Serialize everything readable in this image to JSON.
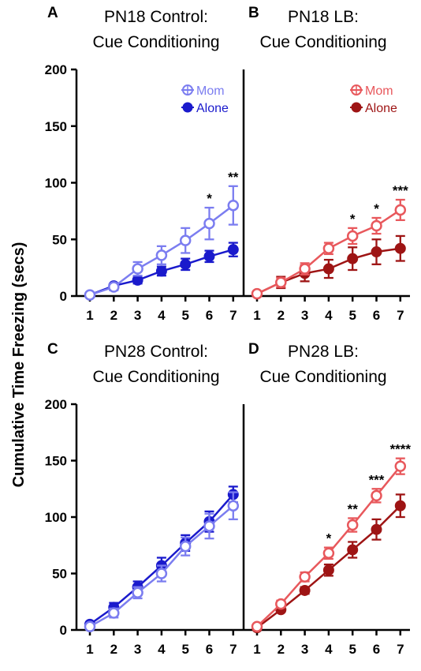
{
  "figure": {
    "ylabel": "Cumulative Time Freezing (secs)"
  },
  "colors": {
    "control_mom": "#7b7df0",
    "control_alone": "#1a1acc",
    "lb_mom": "#e8585c",
    "lb_alone": "#9e1414"
  },
  "chart_data": [
    {
      "panel": "A",
      "type": "line",
      "title_line1": "PN18 Control:",
      "title_line2": "Cue Conditioning",
      "x": [
        1,
        2,
        3,
        4,
        5,
        6,
        7
      ],
      "ylim": [
        0,
        200
      ],
      "yticks": [
        0,
        50,
        100,
        150,
        200
      ],
      "legend": "top-right",
      "series": [
        {
          "name": "Mom",
          "marker": "open",
          "color": "#7b7df0",
          "values": [
            1,
            8,
            24,
            36,
            49,
            64,
            80
          ],
          "errors": [
            1,
            3,
            6,
            8,
            11,
            14,
            17
          ]
        },
        {
          "name": "Alone",
          "marker": "filled",
          "color": "#1a1acc",
          "values": [
            1,
            9,
            14,
            22,
            28,
            35,
            41
          ],
          "errors": [
            1,
            2,
            3,
            4,
            5,
            5,
            6
          ]
        }
      ],
      "annotations": [
        {
          "x": 6,
          "label": "*"
        },
        {
          "x": 7,
          "label": "**"
        }
      ]
    },
    {
      "panel": "B",
      "type": "line",
      "title_line1": "PN18 LB:",
      "title_line2": "Cue Conditioning",
      "x": [
        1,
        2,
        3,
        4,
        5,
        6,
        7
      ],
      "ylim": [
        0,
        200
      ],
      "yticks": [
        0,
        50,
        100,
        150,
        200
      ],
      "legend": "top-right",
      "series": [
        {
          "name": "Mom",
          "marker": "open",
          "color": "#e8585c",
          "values": [
            2,
            12,
            24,
            42,
            53,
            62,
            76
          ],
          "errors": [
            2,
            4,
            5,
            5,
            7,
            7,
            9
          ]
        },
        {
          "name": "Alone",
          "marker": "filled",
          "color": "#9e1414",
          "values": [
            2,
            12,
            20,
            24,
            33,
            39,
            42
          ],
          "errors": [
            2,
            5,
            7,
            8,
            10,
            11,
            11
          ]
        }
      ],
      "annotations": [
        {
          "x": 5,
          "label": "*"
        },
        {
          "x": 6,
          "label": "*"
        },
        {
          "x": 7,
          "label": "***"
        }
      ]
    },
    {
      "panel": "C",
      "type": "line",
      "title_line1": "PN28 Control:",
      "title_line2": "Cue Conditioning",
      "x": [
        1,
        2,
        3,
        4,
        5,
        6,
        7
      ],
      "ylim": [
        0,
        200
      ],
      "yticks": [
        0,
        50,
        100,
        150,
        200
      ],
      "series": [
        {
          "name": "Mom",
          "marker": "open",
          "color": "#7b7df0",
          "values": [
            3,
            15,
            33,
            50,
            74,
            92,
            110
          ],
          "errors": [
            2,
            4,
            5,
            7,
            8,
            11,
            12
          ]
        },
        {
          "name": "Alone",
          "marker": "filled",
          "color": "#1a1acc",
          "values": [
            5,
            20,
            38,
            57,
            77,
            96,
            120
          ],
          "errors": [
            2,
            4,
            5,
            7,
            7,
            9,
            7
          ]
        }
      ],
      "annotations": []
    },
    {
      "panel": "D",
      "type": "line",
      "title_line1": "PN28 LB:",
      "title_line2": "Cue Conditioning",
      "x": [
        1,
        2,
        3,
        4,
        5,
        6,
        7
      ],
      "ylim": [
        0,
        200
      ],
      "yticks": [
        0,
        50,
        100,
        150,
        200
      ],
      "series": [
        {
          "name": "Mom",
          "marker": "open",
          "color": "#e8585c",
          "values": [
            3,
            23,
            47,
            68,
            93,
            119,
            145
          ],
          "errors": [
            1,
            3,
            4,
            5,
            6,
            6,
            7
          ]
        },
        {
          "name": "Alone",
          "marker": "filled",
          "color": "#9e1414",
          "values": [
            2,
            18,
            35,
            53,
            71,
            89,
            110
          ],
          "errors": [
            1,
            2,
            3,
            5,
            7,
            9,
            10
          ]
        }
      ],
      "annotations": [
        {
          "x": 4,
          "label": "*"
        },
        {
          "x": 5,
          "label": "**"
        },
        {
          "x": 6,
          "label": "***"
        },
        {
          "x": 7,
          "label": "****"
        }
      ]
    }
  ]
}
